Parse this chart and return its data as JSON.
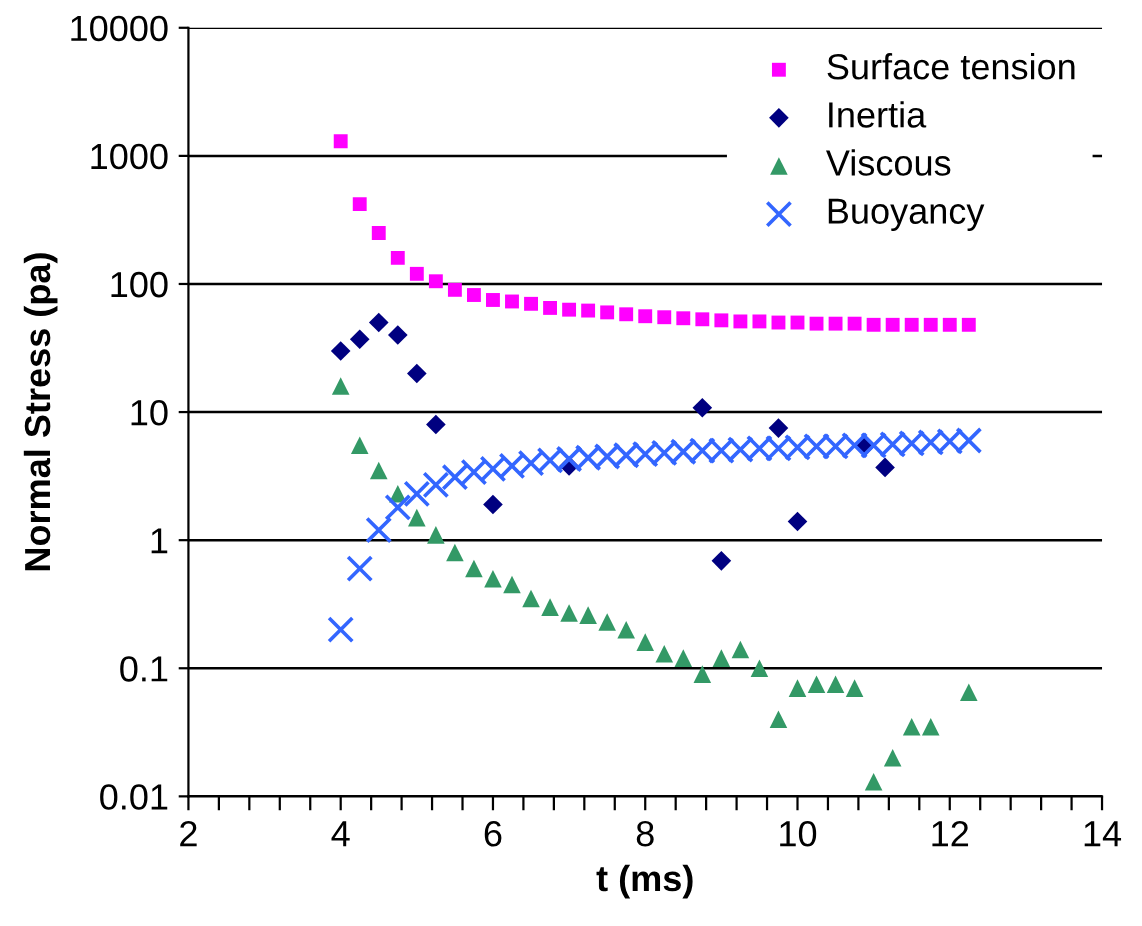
{
  "chart_data": {
    "type": "scatter",
    "xlabel": "t (ms)",
    "ylabel": "Normal Stress (pa)",
    "log": "y",
    "grid": "y",
    "legend": "top right",
    "xlim": [
      2,
      14
    ],
    "ylim": [
      0.01,
      10000
    ],
    "yticks": [
      0.01,
      0.1,
      1,
      10,
      100,
      1000,
      10000
    ],
    "xticks": [
      2,
      {
        "value": 2.4,
        "label": null
      },
      {
        "value": 2.8,
        "label": null
      },
      {
        "value": 3.2,
        "label": null
      },
      {
        "value": 3.6,
        "label": null
      },
      4,
      {
        "value": 4.4,
        "label": null
      },
      {
        "value": 4.8,
        "label": null
      },
      {
        "value": 5.2,
        "label": null
      },
      {
        "value": 5.6,
        "label": null
      },
      6,
      {
        "value": 6.4,
        "label": null
      },
      {
        "value": 6.8,
        "label": null
      },
      {
        "value": 7.2,
        "label": null
      },
      {
        "value": 7.6,
        "label": null
      },
      8,
      {
        "value": 8.4,
        "label": null
      },
      {
        "value": 8.8,
        "label": null
      },
      {
        "value": 9.2,
        "label": null
      },
      {
        "value": 9.6,
        "label": null
      },
      10,
      {
        "value": 10.4,
        "label": null
      },
      {
        "value": 10.8,
        "label": null
      },
      {
        "value": 11.2,
        "label": null
      },
      {
        "value": 11.6,
        "label": null
      },
      12,
      {
        "value": 12.4,
        "label": null
      },
      {
        "value": 12.8,
        "label": null
      },
      {
        "value": 13.2,
        "label": null
      },
      {
        "value": 13.6,
        "label": null
      },
      14
    ],
    "series": [
      {
        "name": "Surface tension",
        "color": "#ff00ff",
        "marker": "square",
        "x": [
          4.0,
          4.25,
          4.5,
          4.75,
          5.0,
          5.25,
          5.5,
          5.75,
          6.0,
          6.25,
          6.5,
          6.75,
          7.0,
          7.25,
          7.5,
          7.75,
          8.0,
          8.25,
          8.5,
          8.75,
          9.0,
          9.25,
          9.5,
          9.75,
          10.0,
          10.25,
          10.5,
          10.75,
          11.0,
          11.25,
          11.5,
          11.75,
          12.0,
          12.25
        ],
        "values": [
          1300,
          420,
          250,
          160,
          120,
          105,
          90,
          82,
          75,
          73,
          70,
          65,
          63,
          62,
          60,
          58,
          56,
          55,
          54,
          53,
          52,
          51,
          51,
          50,
          50,
          49,
          49,
          49,
          48,
          48,
          48,
          48,
          48,
          48
        ]
      },
      {
        "name": "Inertia",
        "color": "#000080",
        "marker": "diamond",
        "x": [
          4.0,
          4.25,
          4.5,
          4.75,
          5.0,
          5.25,
          6.0,
          7.0,
          8.75,
          9.0,
          9.75,
          10.0,
          10.9,
          11.15
        ],
        "values": [
          30,
          37,
          50,
          40,
          20,
          8,
          1.9,
          3.8,
          10.8,
          0.69,
          7.5,
          1.4,
          5.5,
          3.7
        ]
      },
      {
        "name": "Viscous",
        "color": "#339966",
        "marker": "triangle",
        "x": [
          4.0,
          4.25,
          4.5,
          4.75,
          5.0,
          5.25,
          5.5,
          5.75,
          6.0,
          6.25,
          6.5,
          6.75,
          7.0,
          7.25,
          7.5,
          7.75,
          8.0,
          8.25,
          8.5,
          8.75,
          9.0,
          9.25,
          9.5,
          9.75,
          10.0,
          10.25,
          10.5,
          10.75,
          11.0,
          11.25,
          11.5,
          11.75,
          12.25
        ],
        "values": [
          16,
          5.5,
          3.5,
          2.3,
          1.5,
          1.1,
          0.8,
          0.6,
          0.5,
          0.45,
          0.35,
          0.3,
          0.27,
          0.26,
          0.23,
          0.2,
          0.16,
          0.13,
          0.12,
          0.09,
          0.12,
          0.14,
          0.1,
          0.04,
          0.07,
          0.075,
          0.075,
          0.07,
          0.013,
          0.02,
          0.035,
          0.035,
          0.065
        ]
      },
      {
        "name": "Buoyancy",
        "color": "#3366ff",
        "marker": "cross",
        "x": [
          4.0,
          4.25,
          4.5,
          4.75,
          5.0,
          5.25,
          5.5,
          5.75,
          6.0,
          6.25,
          6.5,
          6.75,
          7.0,
          7.25,
          7.5,
          7.75,
          8.0,
          8.25,
          8.5,
          8.75,
          9.0,
          9.25,
          9.5,
          9.75,
          10.0,
          10.25,
          10.5,
          10.75,
          11.0,
          11.25,
          11.5,
          11.75,
          12.0,
          12.25
        ],
        "values": [
          0.2,
          0.6,
          1.2,
          1.8,
          2.3,
          2.7,
          3.1,
          3.4,
          3.6,
          3.8,
          4.0,
          4.2,
          4.3,
          4.4,
          4.5,
          4.6,
          4.7,
          4.8,
          4.9,
          5.0,
          5.0,
          5.1,
          5.2,
          5.2,
          5.3,
          5.4,
          5.4,
          5.5,
          5.5,
          5.6,
          5.7,
          5.8,
          5.9,
          6.0
        ]
      }
    ]
  }
}
